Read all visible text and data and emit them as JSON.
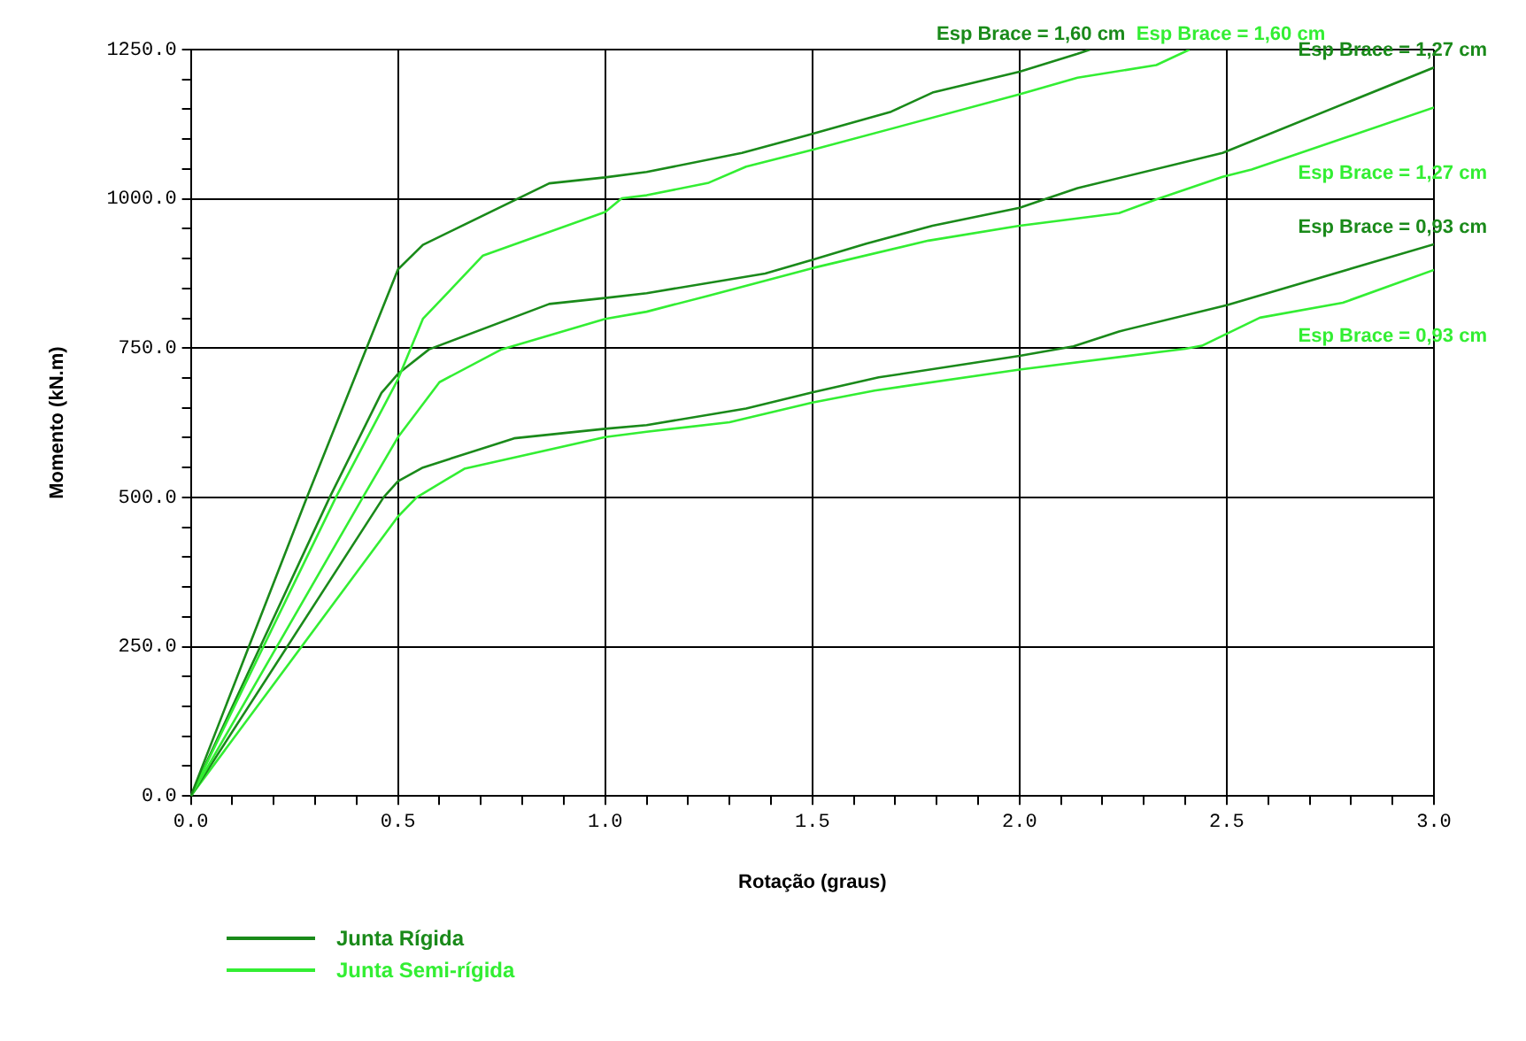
{
  "chart_data": {
    "type": "line",
    "xlabel": "Rotação (graus)",
    "ylabel": "Momento (kN.m)",
    "xlim": [
      0,
      3
    ],
    "ylim": [
      0,
      1250
    ],
    "xticks": [
      {
        "value": 0,
        "label": "0.0"
      },
      {
        "value": 0.1,
        "label": null
      },
      {
        "value": 0.2,
        "label": null
      },
      {
        "value": 0.3,
        "label": null
      },
      {
        "value": 0.4,
        "label": null
      },
      {
        "value": 0.5,
        "label": "0.5"
      },
      {
        "value": 0.6,
        "label": null
      },
      {
        "value": 0.7,
        "label": null
      },
      {
        "value": 0.8,
        "label": null
      },
      {
        "value": 0.9,
        "label": null
      },
      {
        "value": 1,
        "label": "1.0"
      },
      {
        "value": 1.1,
        "label": null
      },
      {
        "value": 1.2,
        "label": null
      },
      {
        "value": 1.3,
        "label": null
      },
      {
        "value": 1.4,
        "label": null
      },
      {
        "value": 1.5,
        "label": "1.5"
      },
      {
        "value": 1.6,
        "label": null
      },
      {
        "value": 1.7,
        "label": null
      },
      {
        "value": 1.8,
        "label": null
      },
      {
        "value": 1.9,
        "label": null
      },
      {
        "value": 2,
        "label": "2.0"
      },
      {
        "value": 2.1,
        "label": null
      },
      {
        "value": 2.2,
        "label": null
      },
      {
        "value": 2.3,
        "label": null
      },
      {
        "value": 2.4,
        "label": null
      },
      {
        "value": 2.5,
        "label": "2.5"
      },
      {
        "value": 2.6,
        "label": null
      },
      {
        "value": 2.7,
        "label": null
      },
      {
        "value": 2.8,
        "label": null
      },
      {
        "value": 2.9,
        "label": null
      },
      {
        "value": 3,
        "label": "3.0"
      }
    ],
    "yticks": [
      {
        "value": 0,
        "label": "0.0"
      },
      {
        "value": 50,
        "label": null
      },
      {
        "value": 100,
        "label": null
      },
      {
        "value": 150,
        "label": null
      },
      {
        "value": 200,
        "label": null
      },
      {
        "value": 250,
        "label": "250.0"
      },
      {
        "value": 300,
        "label": null
      },
      {
        "value": 350,
        "label": null
      },
      {
        "value": 400,
        "label": null
      },
      {
        "value": 450,
        "label": null
      },
      {
        "value": 500,
        "label": "500.0"
      },
      {
        "value": 550,
        "label": null
      },
      {
        "value": 600,
        "label": null
      },
      {
        "value": 650,
        "label": null
      },
      {
        "value": 700,
        "label": null
      },
      {
        "value": 750,
        "label": "750.0"
      },
      {
        "value": 800,
        "label": null
      },
      {
        "value": 850,
        "label": null
      },
      {
        "value": 900,
        "label": null
      },
      {
        "value": 950,
        "label": null
      },
      {
        "value": 1000,
        "label": "1000.0"
      },
      {
        "value": 1050,
        "label": null
      },
      {
        "value": 1100,
        "label": null
      },
      {
        "value": 1150,
        "label": null
      },
      {
        "value": 1200,
        "label": null
      },
      {
        "value": 1250,
        "label": "1250.0"
      }
    ],
    "grid": true,
    "legend": "bottom",
    "marker": "none",
    "line_style": "solid",
    "series": [
      {
        "name": "Junta Rígida",
        "color": "#1a8a1a",
        "x": [
          0,
          0.14,
          0.28,
          0.5,
          0.56,
          0.865,
          1.0,
          1.1,
          1.33,
          1.49,
          1.69,
          1.79,
          2.0,
          2.14,
          2.17
        ],
        "values": [
          0,
          250,
          500,
          882,
          923,
          1026,
          1036,
          1045,
          1077,
          1107,
          1146,
          1178,
          1213,
          1243,
          1250
        ]
      },
      {
        "name": "Junta Semi-rígida",
        "color": "#33ee33",
        "x": [
          0,
          0.35,
          0.5,
          0.56,
          0.705,
          1.0,
          1.04,
          1.1,
          1.25,
          1.34,
          1.5,
          2.0,
          2.14,
          2.33,
          2.41
        ],
        "values": [
          0,
          500,
          698,
          799,
          905,
          978,
          1001,
          1006,
          1027,
          1054,
          1082,
          1175,
          1203,
          1224,
          1250
        ]
      },
      {
        "color": "#1a8a1a",
        "x": [
          0,
          0.335,
          0.46,
          0.5,
          0.575,
          0.865,
          1.0,
          1.1,
          1.386,
          1.5,
          1.63,
          1.79,
          2.0,
          2.08,
          2.14,
          2.49,
          3.0
        ],
        "values": [
          0,
          500,
          675,
          707,
          748,
          824,
          834,
          842,
          875,
          898,
          925,
          955,
          985,
          1004,
          1018,
          1077,
          1220
        ]
      },
      {
        "color": "#33ee33",
        "x": [
          0,
          0.415,
          0.5,
          0.6,
          0.75,
          1.0,
          1.1,
          1.25,
          1.5,
          1.78,
          2.0,
          2.24,
          2.33,
          2.49,
          2.56,
          3.0
        ],
        "values": [
          0,
          500,
          601,
          693,
          748,
          799,
          811,
          838,
          884,
          930,
          955,
          976,
          999,
          1037,
          1049,
          1153
        ]
      },
      {
        "color": "#1a8a1a",
        "x": [
          0,
          0.465,
          0.5,
          0.56,
          0.78,
          1.0,
          1.1,
          1.34,
          1.5,
          1.66,
          2.0,
          2.13,
          2.24,
          2.5,
          3.0
        ],
        "values": [
          0,
          500,
          527,
          550,
          599,
          615,
          621,
          649,
          676,
          701,
          737,
          753,
          778,
          822,
          924
        ]
      },
      {
        "color": "#33ee33",
        "x": [
          0,
          0.5,
          0.545,
          0.66,
          1.0,
          1.1,
          1.3,
          1.5,
          1.65,
          2.0,
          2.4,
          2.44,
          2.58,
          2.78,
          3.0
        ],
        "values": [
          0,
          468,
          500,
          548,
          601,
          610,
          626,
          659,
          679,
          714,
          749,
          754,
          801,
          826,
          881
        ]
      }
    ],
    "annotations": [
      "Esp Brace = 1,60 cm",
      "Esp Brace = 1,60 cm",
      "Esp Brace = 1,27 cm",
      "Esp Brace = 1,27 cm",
      "Esp Brace = 0,93 cm",
      "Esp Brace = 0,93 cm"
    ]
  }
}
